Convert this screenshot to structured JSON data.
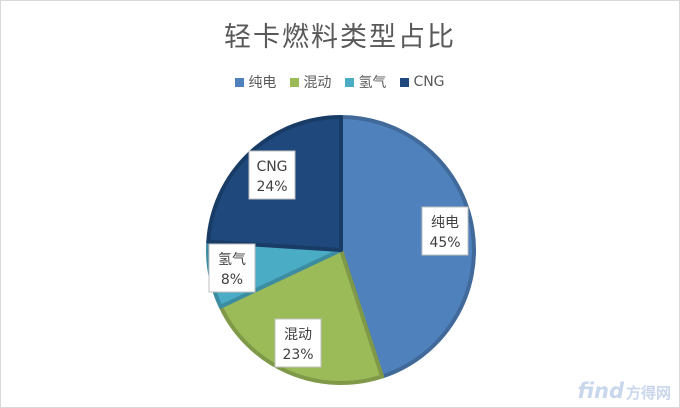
{
  "chart_data": {
    "type": "pie",
    "title": "轻卡燃料类型占比",
    "categories": [
      "纯电",
      "混动",
      "氢气",
      "CNG"
    ],
    "values": [
      45,
      23,
      8,
      24
    ],
    "labels": [
      "45%",
      "23%",
      "8%",
      "24%"
    ],
    "colors": [
      "#4f81bd",
      "#9bbb59",
      "#4bacc6",
      "#1f497d"
    ],
    "legend_position": "top"
  },
  "watermark": {
    "logo": "find",
    "text": "方得网"
  }
}
